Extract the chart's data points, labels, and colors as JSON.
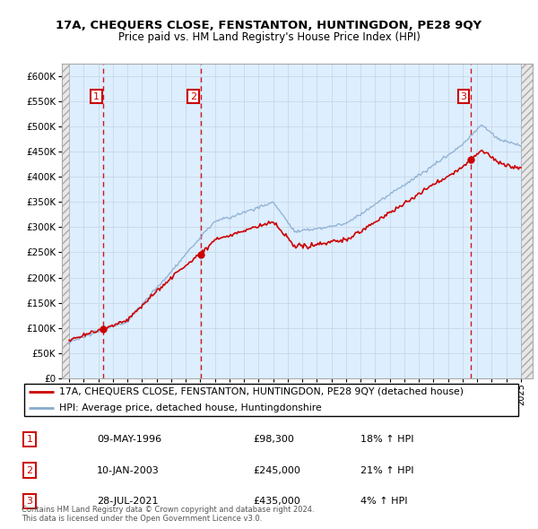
{
  "title": "17A, CHEQUERS CLOSE, FENSTANTON, HUNTINGDON, PE28 9QY",
  "subtitle": "Price paid vs. HM Land Registry's House Price Index (HPI)",
  "sales": [
    {
      "label": "1",
      "date_str": "09-MAY-1996",
      "year": 1996.36,
      "price": 98300,
      "hpi_pct": "18% ↑ HPI"
    },
    {
      "label": "2",
      "date_str": "10-JAN-2003",
      "year": 2003.03,
      "price": 245000,
      "hpi_pct": "21% ↑ HPI"
    },
    {
      "label": "3",
      "date_str": "28-JUL-2021",
      "year": 2021.57,
      "price": 435000,
      "hpi_pct": "4% ↑ HPI"
    }
  ],
  "legend_line1": "17A, CHEQUERS CLOSE, FENSTANTON, HUNTINGDON, PE28 9QY (detached house)",
  "legend_line2": "HPI: Average price, detached house, Huntingdonshire",
  "footer": "Contains HM Land Registry data © Crown copyright and database right 2024.\nThis data is licensed under the Open Government Licence v3.0.",
  "price_line_color": "#cc0000",
  "hpi_line_color": "#88aacc",
  "sale_dot_color": "#cc0000",
  "vline_color": "#cc0000",
  "box_color": "#cc0000",
  "grid_color": "#c8d8e8",
  "bg_color": "#ddeeff",
  "ylim": [
    0,
    625000
  ],
  "xlim_start": 1993.5,
  "xlim_end": 2025.8,
  "hpi_start_year": 1994,
  "hpi_end_year": 2025,
  "sale1_year": 1996.36,
  "sale1_price": 98300,
  "sale2_year": 2003.03,
  "sale2_price": 245000,
  "sale3_year": 2021.57,
  "sale3_price": 435000,
  "row_data": [
    [
      "1",
      "09-MAY-1996",
      "£98,300",
      "18% ↑ HPI"
    ],
    [
      "2",
      "10-JAN-2003",
      "£245,000",
      "21% ↑ HPI"
    ],
    [
      "3",
      "28-JUL-2021",
      "£435,000",
      "4% ↑ HPI"
    ]
  ]
}
